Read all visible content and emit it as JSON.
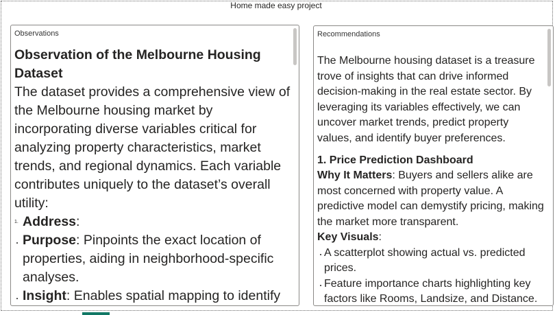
{
  "header": {
    "title": "Home made easy project"
  },
  "observations": {
    "label": "Observations",
    "heading": "Observation of the Melbourne Housing Dataset",
    "intro": "The dataset provides a comprehensive view of the Melbourne housing market by incorporating diverse variables critical for analyzing property characteristics, market trends, and regional dynamics. Each variable contributes uniquely to the dataset’s overall utility:",
    "items": [
      {
        "marker": "1.",
        "term": "Address",
        "text": ":"
      },
      {
        "term": "Purpose",
        "text": ": Pinpoints the exact location of properties, aiding in neighborhood-specific analyses."
      },
      {
        "term": "Insight",
        "text": ": Enables spatial mapping to identify"
      }
    ]
  },
  "recommendations": {
    "label": "Recommendations",
    "intro": "The Melbourne housing dataset is a treasure trove of insights that can drive informed decision-making in the real estate sector. By leveraging its variables effectively, we can uncover market trends, predict property values, and identify buyer preferences.",
    "sections": [
      {
        "heading": "1. Price Prediction Dashboard",
        "why_label": "Why It Matters",
        "why_text": ": Buyers and sellers alike are most concerned with property value. A predictive model can demystify pricing, making the market more transparent.",
        "visuals_label": "Key Visuals",
        "visuals_colon": ":",
        "visuals": [
          "A scatterplot showing actual vs. predicted prices.",
          "Feature importance charts highlighting key factors like Rooms, Landsize, and Distance."
        ]
      }
    ]
  }
}
